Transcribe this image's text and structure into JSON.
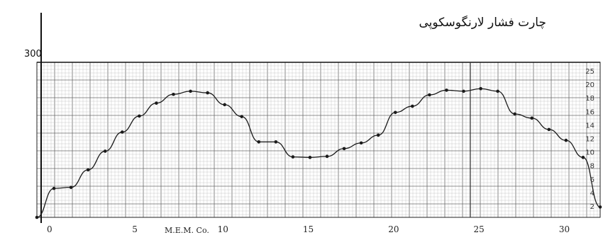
{
  "chart_data": {
    "type": "line",
    "title": "چارت فشار لارنگوسکوپی",
    "y_top_label": "300",
    "footer_text": "M.E.M. Co.",
    "x_tick_labels": [
      "0",
      "5",
      "10",
      "15",
      "20",
      "25",
      "30"
    ],
    "right_labels": [
      "25",
      "20",
      "18",
      "16",
      "14",
      "12",
      "10",
      "8",
      "6",
      "4",
      "2"
    ],
    "grid": true,
    "ylim": [
      0,
      300
    ],
    "xlim": [
      0,
      33
    ],
    "x": [
      0,
      1,
      2,
      3,
      4,
      5,
      6,
      7,
      8,
      9,
      10,
      11,
      12,
      13,
      14,
      15,
      16,
      17,
      18,
      19,
      20,
      21,
      22,
      23,
      24,
      25,
      26,
      27,
      28,
      29,
      30,
      31,
      32,
      33
    ],
    "values": [
      0,
      56,
      58,
      92,
      128,
      165,
      196,
      221,
      238,
      244,
      241,
      218,
      195,
      146,
      146,
      117,
      116,
      118,
      133,
      144,
      159,
      203,
      215,
      237,
      246,
      244,
      249,
      244,
      200,
      192,
      170,
      149,
      116,
      20
    ],
    "colors": {
      "line": "#1a1a1a",
      "grid_minor": "#bcbcbc",
      "grid_major": "#6b6b6b"
    }
  }
}
